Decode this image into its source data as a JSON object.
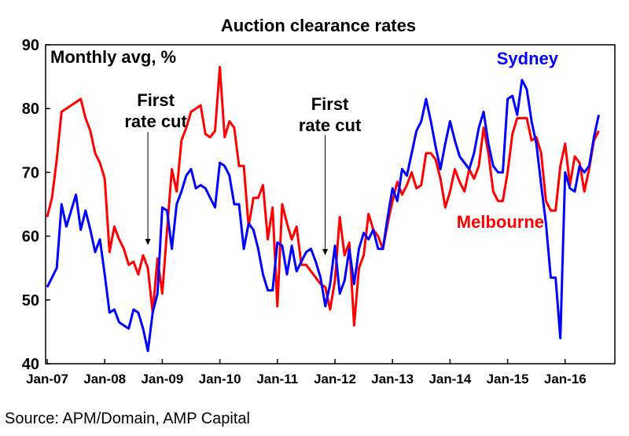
{
  "chart_data": {
    "type": "line",
    "title": "Auction clearance rates",
    "unit_label": "Monthly avg, %",
    "ylim": [
      40,
      90
    ],
    "yticks": [
      40,
      50,
      60,
      70,
      80,
      90
    ],
    "x_tick_labels": [
      "Jan-07",
      "Jan-08",
      "Jan-09",
      "Jan-10",
      "Jan-11",
      "Jan-12",
      "Jan-13",
      "Jan-14",
      "Jan-15",
      "Jan-16"
    ],
    "start_year": 2007,
    "grid": false,
    "annotations": [
      {
        "text": [
          "First",
          "rate cut"
        ],
        "x": 2008.75
      },
      {
        "text": [
          "First",
          "rate cut"
        ],
        "x": 2011.83
      }
    ],
    "series": [
      {
        "name": "Sydney",
        "color": "#0000ff",
        "values": [
          52,
          53.5,
          55,
          65,
          61.5,
          64,
          66.5,
          61,
          64,
          61,
          57.5,
          59.5,
          54,
          48,
          48.5,
          46.5,
          46,
          45.5,
          48.5,
          48,
          45.5,
          42,
          48,
          51,
          64.5,
          64,
          58,
          65,
          67,
          69.5,
          70.5,
          67.5,
          68,
          67.5,
          66,
          64.5,
          71.5,
          71,
          69.5,
          65,
          65,
          58,
          62,
          61,
          58,
          54,
          51.5,
          51.5,
          59,
          58.5,
          54,
          58.5,
          54.5,
          56,
          57.5,
          58,
          56,
          53.5,
          49,
          52.5,
          58.5,
          51,
          53,
          58,
          52.5,
          58,
          60.5,
          59.5,
          61,
          58,
          58,
          63,
          67.5,
          65.5,
          70.5,
          69.5,
          73,
          76.5,
          78,
          81.5,
          78,
          74,
          70.5,
          74.5,
          78,
          75,
          72.5,
          71.5,
          70.5,
          73,
          77,
          79.5,
          74.5,
          71,
          70,
          70,
          81.5,
          82,
          79,
          84.5,
          83,
          78,
          74.5,
          68,
          62,
          53.5,
          53.5,
          44,
          70,
          67.5,
          67,
          71,
          70,
          71,
          75.5,
          79
        ]
      },
      {
        "name": "Melbourne",
        "color": "#ff0000",
        "values": [
          63,
          66,
          72,
          79.5,
          80,
          80.5,
          81,
          81.5,
          78.5,
          76.5,
          73,
          71.5,
          69,
          57.5,
          61.5,
          59.5,
          58,
          55.5,
          56,
          54,
          57,
          55,
          48,
          56.5,
          51,
          61,
          70.5,
          67,
          75,
          77,
          79.5,
          80,
          80.5,
          76,
          75.5,
          76.5,
          86.5,
          75.5,
          78,
          77,
          71,
          71,
          61.5,
          66,
          66,
          68,
          59.5,
          64.5,
          49,
          65,
          62,
          59.5,
          61.5,
          55.5,
          55.5,
          54.5,
          53.5,
          52.5,
          52,
          48.5,
          53,
          63,
          57,
          59,
          46,
          55,
          57,
          63.5,
          61,
          60,
          58,
          62,
          65.5,
          68.5,
          66.5,
          68,
          70,
          67.5,
          68,
          73,
          73,
          72,
          69,
          64.5,
          67,
          70.5,
          68.5,
          67,
          70.5,
          69,
          71,
          77,
          73,
          67,
          65.5,
          65.5,
          70,
          76,
          78.5,
          78.5,
          78.5,
          75,
          75.5,
          73,
          65.5,
          64,
          64,
          71,
          74.5,
          68,
          72.5,
          71.5,
          67,
          70.5,
          75,
          76.5
        ]
      }
    ]
  },
  "legend": {
    "sydney": "Sydney",
    "melbourne": "Melbourne"
  },
  "source": "Source: APM/Domain, AMP Capital"
}
